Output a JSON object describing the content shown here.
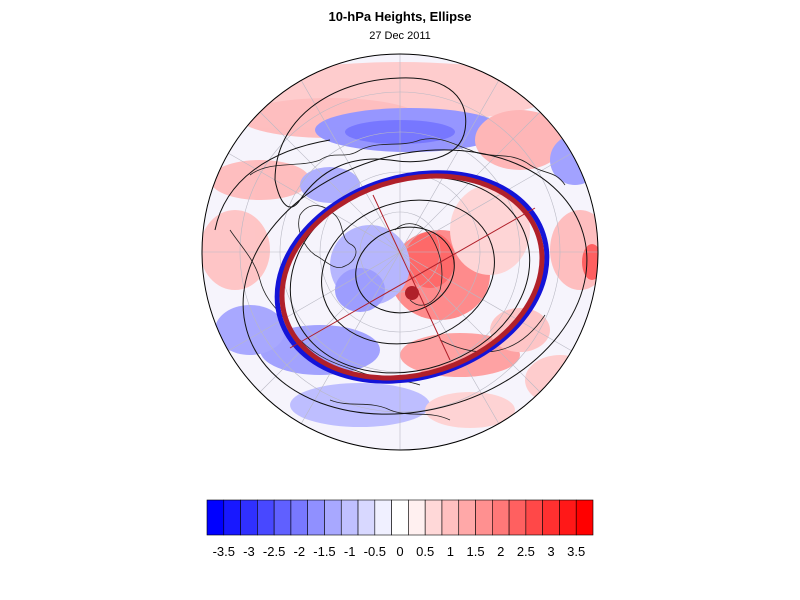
{
  "header": {
    "title": "10-hPa Heights, Ellipse",
    "subtitle": "27 Dec 2011"
  },
  "map": {
    "projection": "north-polar-stereographic",
    "field": "10-hPa height anomaly (shaded)",
    "contours": "10-hPa heights (black lines)",
    "ellipse_colors": {
      "fitted_ellipse": "#b0202a",
      "reference_ellipse": "#1010d0",
      "center_marker": "#b0202a"
    }
  },
  "colorbar": {
    "labels": [
      "-3.5",
      "-3",
      "-2.5",
      "-2",
      "-1.5",
      "-1",
      "-0.5",
      "0",
      "0.5",
      "1",
      "1.5",
      "2",
      "2.5",
      "3",
      "3.5"
    ],
    "colors": [
      "#0000ff",
      "#1818ff",
      "#3030ff",
      "#4848ff",
      "#6060ff",
      "#7878ff",
      "#9090ff",
      "#a8a8ff",
      "#c0c0ff",
      "#d8d8ff",
      "#f0f0ff",
      "#ffffff",
      "#fff0f0",
      "#ffd8d8",
      "#ffc0c0",
      "#ffa8a8",
      "#ff9090",
      "#ff7878",
      "#ff6060",
      "#ff4848",
      "#ff3030",
      "#ff1818",
      "#ff0000"
    ]
  }
}
